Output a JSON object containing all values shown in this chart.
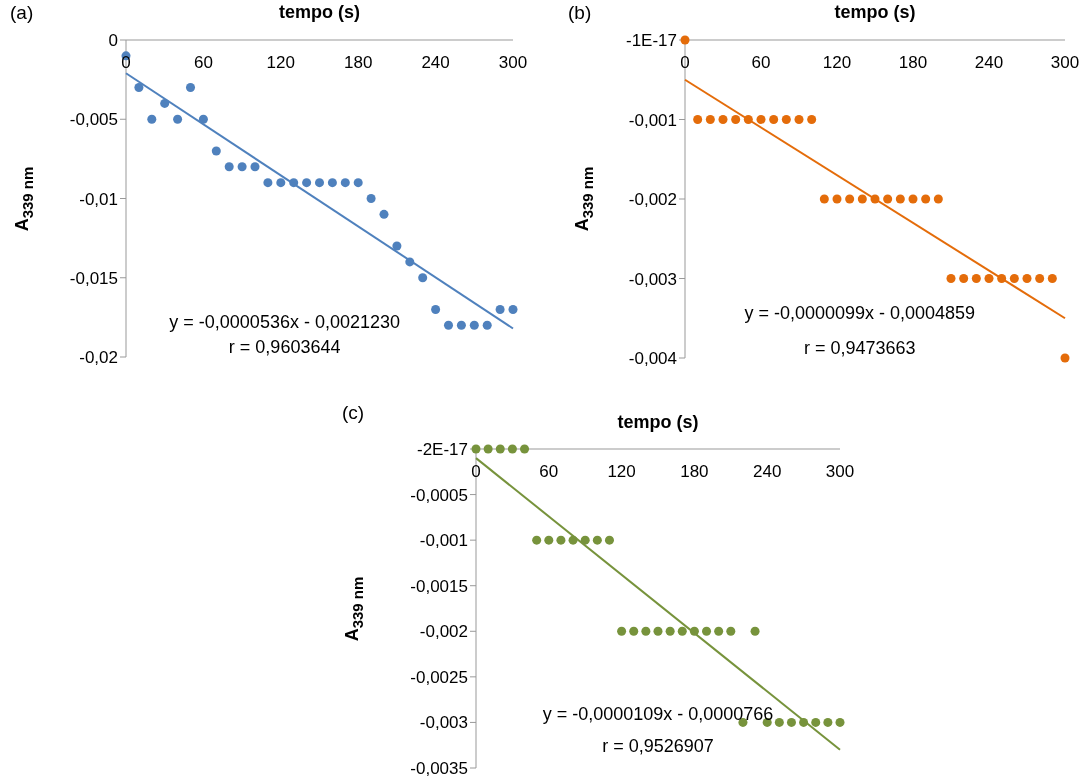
{
  "chart_data": [
    {
      "type": "scatter",
      "title": "(a)",
      "xlabel": "tempo (s)",
      "ylabel": "A$_{339 nm}$",
      "marker": "circle",
      "xlim": [
        0,
        300
      ],
      "xticks": [
        0,
        60,
        120,
        180,
        240,
        300
      ],
      "ylim": [
        -0.02,
        0
      ],
      "yticks": [
        {
          "value": 0,
          "label": "0"
        },
        {
          "value": -0.005,
          "label": "-0,005"
        },
        {
          "value": -0.01,
          "label": "-0,01"
        },
        {
          "value": -0.015,
          "label": "-0,015"
        },
        {
          "value": -0.02,
          "label": "-0,02"
        }
      ],
      "series": [
        {
          "type": "scatter",
          "color": "#4f81bd",
          "x": [
            0,
            10,
            20,
            30,
            40,
            50,
            60,
            70,
            80,
            90,
            100,
            110,
            120,
            130,
            140,
            150,
            160,
            170,
            180,
            190,
            200,
            210,
            220,
            230,
            240,
            250,
            260,
            270,
            280,
            290,
            300
          ],
          "values": [
            -0.001,
            -0.003,
            -0.005,
            -0.004,
            -0.005,
            -0.003,
            -0.005,
            -0.007,
            -0.008,
            -0.008,
            -0.008,
            -0.009,
            -0.009,
            -0.009,
            -0.009,
            -0.009,
            -0.009,
            -0.009,
            -0.009,
            -0.01,
            -0.011,
            -0.013,
            -0.014,
            -0.015,
            -0.017,
            -0.018,
            -0.018,
            -0.018,
            -0.018,
            -0.017,
            -0.017
          ]
        },
        {
          "type": "line",
          "color": "#4f81bd",
          "marker": "none",
          "x": [
            0,
            300
          ],
          "values": [
            -0.0021,
            -0.0182
          ]
        }
      ],
      "annotations": [
        "y = -0,0000536x - 0,0021230",
        "r = 0,9603644"
      ]
    },
    {
      "type": "scatter",
      "title": "(b)",
      "xlabel": "tempo (s)",
      "ylabel": "A$_{339 nm}$",
      "marker": "circle",
      "xlim": [
        0,
        300
      ],
      "xticks": [
        0,
        60,
        120,
        180,
        240,
        300
      ],
      "ylim": [
        -0.004,
        0
      ],
      "yticks": [
        {
          "value": 0,
          "label": "-1E-17"
        },
        {
          "value": -0.001,
          "label": "-0,001"
        },
        {
          "value": -0.002,
          "label": "-0,002"
        },
        {
          "value": -0.003,
          "label": "-0,003"
        },
        {
          "value": -0.004,
          "label": "-0,004"
        }
      ],
      "series": [
        {
          "type": "scatter",
          "color": "#e46c0a",
          "x": [
            0,
            10,
            20,
            30,
            40,
            50,
            60,
            70,
            80,
            90,
            100,
            110,
            120,
            130,
            140,
            150,
            160,
            170,
            180,
            190,
            200,
            210,
            220,
            230,
            240,
            250,
            260,
            270,
            280,
            290,
            300
          ],
          "values": [
            0,
            -0.001,
            -0.001,
            -0.001,
            -0.001,
            -0.001,
            -0.001,
            -0.001,
            -0.001,
            -0.001,
            -0.001,
            -0.002,
            -0.002,
            -0.002,
            -0.002,
            -0.002,
            -0.002,
            -0.002,
            -0.002,
            -0.002,
            -0.002,
            -0.003,
            -0.003,
            -0.003,
            -0.003,
            -0.003,
            -0.003,
            -0.003,
            -0.003,
            -0.003,
            -0.004
          ]
        },
        {
          "type": "line",
          "color": "#e46c0a",
          "marker": "none",
          "x": [
            0,
            300
          ],
          "values": [
            -0.0005,
            -0.0035
          ]
        }
      ],
      "annotations": [
        "y = -0,0000099x - 0,0004859",
        "r = 0,9473663"
      ]
    },
    {
      "type": "scatter",
      "title": "(c)",
      "xlabel": "tempo (s)",
      "ylabel": "A$_{339 nm}$",
      "marker": "circle",
      "xlim": [
        0,
        300
      ],
      "xticks": [
        0,
        60,
        120,
        180,
        240,
        300
      ],
      "ylim": [
        -0.0035,
        0
      ],
      "yticks": [
        {
          "value": 0,
          "label": "-2E-17"
        },
        {
          "value": -0.0005,
          "label": "-0,0005"
        },
        {
          "value": -0.001,
          "label": "-0,001"
        },
        {
          "value": -0.0015,
          "label": "-0,0015"
        },
        {
          "value": -0.002,
          "label": "-0,002"
        },
        {
          "value": -0.0025,
          "label": "-0,0025"
        },
        {
          "value": -0.003,
          "label": "-0,003"
        },
        {
          "value": -0.0035,
          "label": "-0,0035"
        }
      ],
      "series": [
        {
          "type": "scatter",
          "color": "#77933c",
          "x": [
            0,
            10,
            20,
            30,
            40,
            50,
            60,
            70,
            80,
            90,
            100,
            110,
            120,
            130,
            140,
            150,
            160,
            170,
            180,
            190,
            200,
            210,
            220,
            230,
            240,
            250,
            260,
            270,
            280,
            290,
            300
          ],
          "values": [
            0,
            0,
            0,
            0,
            0,
            -0.001,
            -0.001,
            -0.001,
            -0.001,
            -0.001,
            -0.001,
            -0.001,
            -0.002,
            -0.002,
            -0.002,
            -0.002,
            -0.002,
            -0.002,
            -0.002,
            -0.002,
            -0.002,
            -0.002,
            -0.003,
            -0.002,
            -0.003,
            -0.003,
            -0.003,
            -0.003,
            -0.003,
            -0.003,
            -0.003
          ]
        },
        {
          "type": "line",
          "color": "#77933c",
          "marker": "none",
          "x": [
            0,
            300
          ],
          "values": [
            -0.0001,
            -0.0033
          ]
        }
      ],
      "annotations": [
        "y = -0,0000109x - 0,0000766",
        "r = 0,9526907"
      ]
    }
  ]
}
